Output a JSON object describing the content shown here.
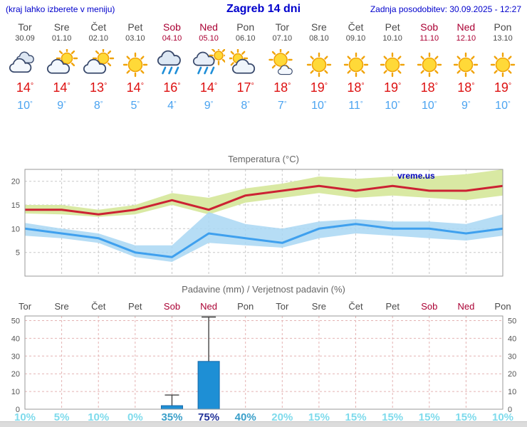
{
  "header": {
    "menu_hint": "(kraj lahko izberete v meniju)",
    "title": "Zagreb 14 dni",
    "last_update": "Zadnja posodobitev: 30.09.2025 - 12:27"
  },
  "watermark": "vreme.us",
  "days": [
    {
      "name": "Tor",
      "date": "30.09",
      "icon": "cloudy",
      "tmax": 14,
      "tmin": 10,
      "weekend": false
    },
    {
      "name": "Sre",
      "date": "01.10",
      "icon": "partly-cloudy",
      "tmax": 14,
      "tmin": 9,
      "weekend": false
    },
    {
      "name": "Čet",
      "date": "02.10",
      "icon": "partly-cloudy",
      "tmax": 13,
      "tmin": 8,
      "weekend": false
    },
    {
      "name": "Pet",
      "date": "03.10",
      "icon": "sunny",
      "tmax": 14,
      "tmin": 5,
      "weekend": false
    },
    {
      "name": "Sob",
      "date": "04.10",
      "icon": "rain",
      "tmax": 16,
      "tmin": 4,
      "weekend": true
    },
    {
      "name": "Ned",
      "date": "05.10",
      "icon": "sun-rain",
      "tmax": 14,
      "tmin": 9,
      "weekend": true
    },
    {
      "name": "Pon",
      "date": "06.10",
      "icon": "mostly-cloudy",
      "tmax": 17,
      "tmin": 8,
      "weekend": false
    },
    {
      "name": "Tor",
      "date": "07.10",
      "icon": "mostly-sunny",
      "tmax": 18,
      "tmin": 7,
      "weekend": false
    },
    {
      "name": "Sre",
      "date": "08.10",
      "icon": "sunny",
      "tmax": 19,
      "tmin": 10,
      "weekend": false
    },
    {
      "name": "Čet",
      "date": "09.10",
      "icon": "sunny",
      "tmax": 18,
      "tmin": 11,
      "weekend": false
    },
    {
      "name": "Pet",
      "date": "10.10",
      "icon": "sunny",
      "tmax": 19,
      "tmin": 10,
      "weekend": false
    },
    {
      "name": "Sob",
      "date": "11.10",
      "icon": "sunny",
      "tmax": 18,
      "tmin": 10,
      "weekend": true
    },
    {
      "name": "Ned",
      "date": "12.10",
      "icon": "sunny",
      "tmax": 18,
      "tmin": 9,
      "weekend": true
    },
    {
      "name": "Pon",
      "date": "13.10",
      "icon": "sunny",
      "tmax": 19,
      "tmin": 10,
      "weekend": false
    }
  ],
  "chart_data": [
    {
      "type": "line",
      "title": "Temperatura (°C)",
      "categories": [
        "Tor 30.09",
        "Sre 01.10",
        "Čet 02.10",
        "Pet 03.10",
        "Sob 04.10",
        "Ned 05.10",
        "Pon 06.10",
        "Tor 07.10",
        "Sre 08.10",
        "Čet 09.10",
        "Pet 10.10",
        "Sob 11.10",
        "Ned 12.10",
        "Pon 13.10"
      ],
      "series": [
        {
          "name": "t_max",
          "values": [
            14,
            14,
            13,
            14,
            16,
            14,
            17,
            18,
            19,
            18,
            19,
            18,
            18,
            19
          ]
        },
        {
          "name": "t_max_range_upper",
          "values": [
            15,
            15,
            14,
            15,
            17.5,
            16.5,
            18.5,
            19.5,
            21,
            20.5,
            21,
            21,
            21.5,
            22.5
          ]
        },
        {
          "name": "t_max_range_lower",
          "values": [
            13.2,
            13,
            12.5,
            13,
            15,
            13,
            15.5,
            16.5,
            17.5,
            16.5,
            17,
            16.5,
            16,
            17
          ]
        },
        {
          "name": "t_min",
          "values": [
            10,
            9,
            8,
            5,
            4,
            9,
            8,
            7,
            10,
            11,
            10,
            10,
            9,
            10
          ]
        },
        {
          "name": "t_min_range_upper",
          "values": [
            11.2,
            10,
            9,
            6.5,
            6.5,
            13.5,
            11,
            10,
            11.5,
            12,
            11.5,
            11.5,
            11,
            13
          ]
        },
        {
          "name": "t_min_range_lower",
          "values": [
            8.5,
            8,
            7,
            4,
            3,
            7,
            6.5,
            6,
            8,
            9,
            8.5,
            8,
            7.5,
            8.5
          ]
        }
      ],
      "ylim": [
        0,
        22.5
      ],
      "yticks": [
        5,
        10,
        15,
        20
      ],
      "grid": true,
      "legend": false
    },
    {
      "type": "bar",
      "title": "Padavine (mm) / Verjetnost padavin (%)",
      "categories": [
        "Tor",
        "Sre",
        "Čet",
        "Pet",
        "Sob",
        "Ned",
        "Pon",
        "Tor",
        "Sre",
        "Čet",
        "Pet",
        "Sob",
        "Ned",
        "Pon"
      ],
      "precip_mm": [
        0,
        0,
        0,
        0,
        2,
        27,
        0,
        0,
        0,
        0,
        0,
        0,
        0,
        0
      ],
      "precip_max_mm": [
        0,
        0,
        0,
        0,
        8,
        52,
        0,
        0,
        0,
        0,
        0,
        0,
        0,
        0
      ],
      "probability_pct": [
        10,
        5,
        10,
        0,
        35,
        75,
        40,
        20,
        15,
        15,
        15,
        15,
        15,
        10
      ],
      "ylim": [
        0,
        52.6
      ],
      "yticks": [
        0,
        10,
        20,
        30,
        40,
        50
      ],
      "grid": true,
      "legend": false
    }
  ],
  "colors": {
    "link_blue": "#0000cc",
    "weekend_red": "#aa0033",
    "tmax_text": "#dd1111",
    "tmin_text": "#4aa3f0",
    "tmax_line": "#cc2233",
    "tmax_band": "#d9e9a3",
    "tmin_line": "#3fa0ee",
    "tmin_band": "#a9d7f3",
    "bar": "#1e8fd5",
    "pop_low": "#7fdbec",
    "pop_mid": "#3a9fc9",
    "pop_high": "#223399"
  }
}
